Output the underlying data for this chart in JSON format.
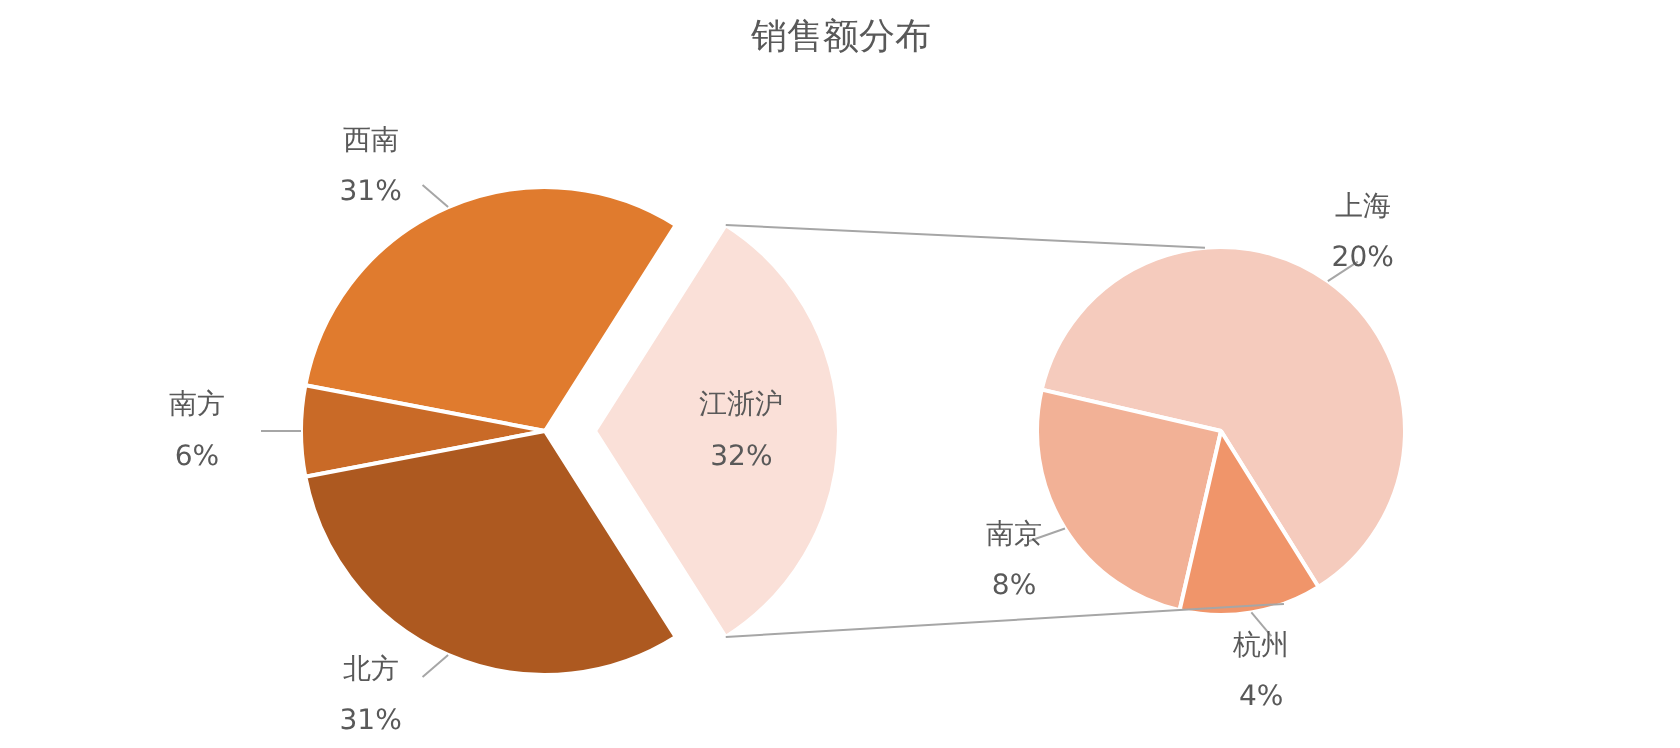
{
  "chart_data": [
    {
      "type": "pie",
      "title": "销售额分布",
      "categories": [
        "西南",
        "南方",
        "北方",
        "江浙沪"
      ],
      "values": [
        31,
        6,
        31,
        32
      ],
      "colors": [
        "#e07b2e",
        "#c96a27",
        "#ad5920",
        "#fae0d8"
      ],
      "value_labels": [
        "31%",
        "6%",
        "31%",
        "32%"
      ]
    },
    {
      "type": "pie",
      "categories": [
        "上海",
        "南京",
        "杭州"
      ],
      "values": [
        20,
        8,
        4
      ],
      "colors": [
        "#f5cbbd",
        "#f2b196",
        "#f0956a"
      ],
      "value_labels": [
        "20%",
        "8%",
        "4%"
      ]
    }
  ]
}
